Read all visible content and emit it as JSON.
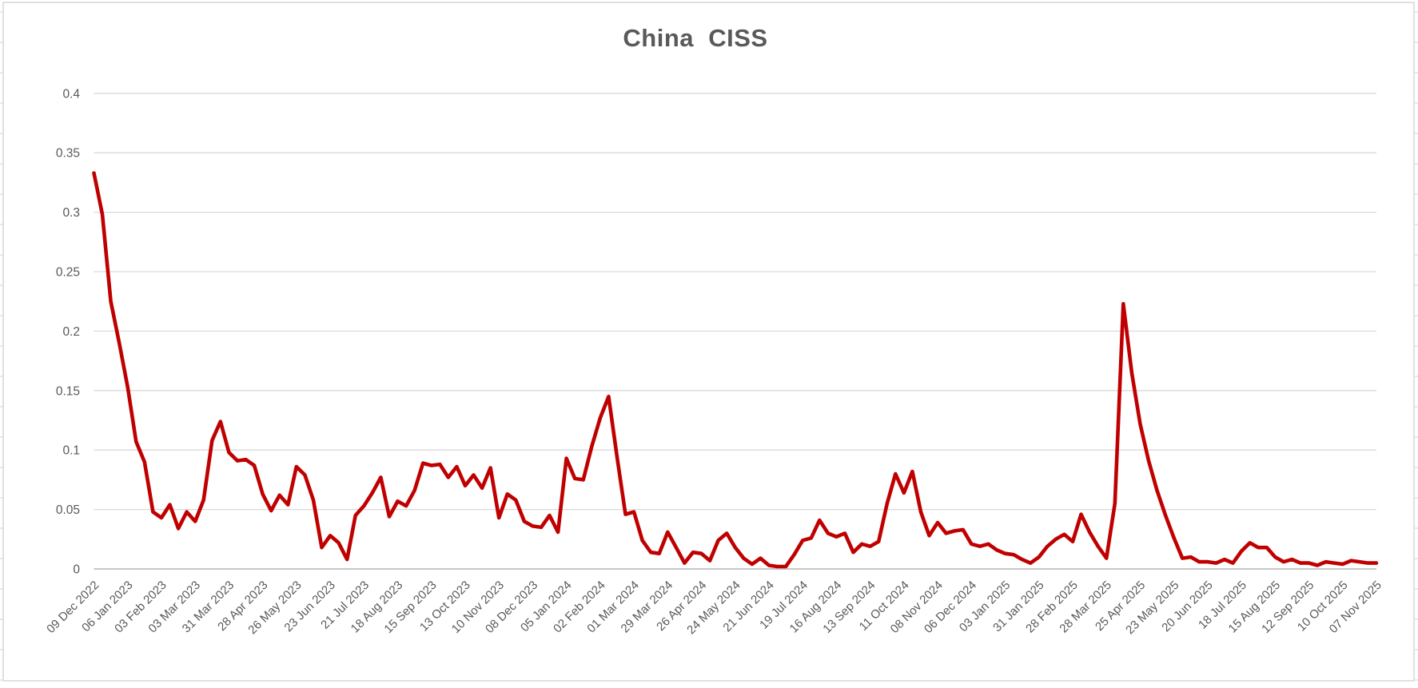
{
  "chart_data": {
    "type": "line",
    "title": "China  CISS",
    "legend": "none",
    "grid": true,
    "series_name": "China CISS",
    "series_color": "#C00000",
    "ylim": [
      0,
      0.4
    ],
    "y_ticks": [
      0,
      0.05,
      0.1,
      0.15,
      0.2,
      0.25,
      0.3,
      0.35,
      0.4
    ],
    "y_tick_labels": [
      "0",
      "0.05",
      "0.1",
      "0.15",
      "0.2",
      "0.25",
      "0.3",
      "0.35",
      "0.4"
    ],
    "x_tick_labels": [
      "09 Dec 2022",
      "06 Jan 2023",
      "03 Feb 2023",
      "03 Mar 2023",
      "31 Mar 2023",
      "28 Apr 2023",
      "26 May 2023",
      "23 Jun 2023",
      "21 Jul 2023",
      "18 Aug 2023",
      "15 Sep 2023",
      "13 Oct 2023",
      "10 Nov 2023",
      "08 Dec 2023",
      "05 Jan 2024",
      "02 Feb 2024",
      "01 Mar 2024",
      "29 Mar 2024",
      "26 Apr 2024",
      "24 May 2024",
      "21 Jun 2024",
      "19 Jul 2024",
      "16 Aug 2024",
      "13 Sep 2024",
      "11 Oct 2024",
      "08 Nov 2024",
      "06 Dec 2024",
      "03 Jan 2025",
      "31 Jan 2025",
      "28 Feb 2025",
      "28 Mar 2025",
      "25 Apr 2025",
      "23 May 2025",
      "20 Jun 2025",
      "18 Jul 2025",
      "15 Aug 2025",
      "12 Sep 2025",
      "10 Oct 2025",
      "07 Nov 2025"
    ],
    "x_ticks_every_n_points": 4,
    "x": [
      "2022-12-09",
      "2022-12-16",
      "2022-12-23",
      "2022-12-30",
      "2023-01-06",
      "2023-01-13",
      "2023-01-20",
      "2023-01-27",
      "2023-02-03",
      "2023-02-10",
      "2023-02-17",
      "2023-02-24",
      "2023-03-03",
      "2023-03-10",
      "2023-03-17",
      "2023-03-24",
      "2023-03-31",
      "2023-04-07",
      "2023-04-14",
      "2023-04-21",
      "2023-04-28",
      "2023-05-05",
      "2023-05-12",
      "2023-05-19",
      "2023-05-26",
      "2023-06-02",
      "2023-06-09",
      "2023-06-16",
      "2023-06-23",
      "2023-06-30",
      "2023-07-07",
      "2023-07-14",
      "2023-07-21",
      "2023-07-28",
      "2023-08-04",
      "2023-08-11",
      "2023-08-18",
      "2023-08-25",
      "2023-09-01",
      "2023-09-08",
      "2023-09-15",
      "2023-09-22",
      "2023-09-29",
      "2023-10-06",
      "2023-10-13",
      "2023-10-20",
      "2023-10-27",
      "2023-11-03",
      "2023-11-10",
      "2023-11-17",
      "2023-11-24",
      "2023-12-01",
      "2023-12-08",
      "2023-12-15",
      "2023-12-22",
      "2023-12-29",
      "2024-01-05",
      "2024-01-12",
      "2024-01-19",
      "2024-01-26",
      "2024-02-02",
      "2024-02-09",
      "2024-02-16",
      "2024-02-23",
      "2024-03-01",
      "2024-03-08",
      "2024-03-15",
      "2024-03-22",
      "2024-03-29",
      "2024-04-05",
      "2024-04-12",
      "2024-04-19",
      "2024-04-26",
      "2024-05-03",
      "2024-05-10",
      "2024-05-17",
      "2024-05-24",
      "2024-05-31",
      "2024-06-07",
      "2024-06-14",
      "2024-06-21",
      "2024-06-28",
      "2024-07-05",
      "2024-07-12",
      "2024-07-19",
      "2024-07-26",
      "2024-08-02",
      "2024-08-09",
      "2024-08-16",
      "2024-08-23",
      "2024-08-30",
      "2024-09-06",
      "2024-09-13",
      "2024-09-20",
      "2024-09-27",
      "2024-10-04",
      "2024-10-11",
      "2024-10-18",
      "2024-10-25",
      "2024-11-01",
      "2024-11-08",
      "2024-11-15",
      "2024-11-22",
      "2024-11-29",
      "2024-12-06",
      "2024-12-13",
      "2024-12-20",
      "2024-12-27",
      "2025-01-03",
      "2025-01-10",
      "2025-01-17",
      "2025-01-24",
      "2025-01-31",
      "2025-02-07",
      "2025-02-14",
      "2025-02-21",
      "2025-02-28",
      "2025-03-07",
      "2025-03-14",
      "2025-03-21",
      "2025-03-28",
      "2025-04-04",
      "2025-04-11",
      "2025-04-18",
      "2025-04-25",
      "2025-05-02",
      "2025-05-09",
      "2025-05-16",
      "2025-05-23",
      "2025-05-30",
      "2025-06-06",
      "2025-06-13",
      "2025-06-20",
      "2025-06-27",
      "2025-07-04",
      "2025-07-11",
      "2025-07-18",
      "2025-07-25",
      "2025-08-01",
      "2025-08-08",
      "2025-08-15",
      "2025-08-22",
      "2025-08-29",
      "2025-09-05",
      "2025-09-12",
      "2025-09-19",
      "2025-09-26",
      "2025-10-03",
      "2025-10-10",
      "2025-10-17",
      "2025-10-24",
      "2025-10-31",
      "2025-11-07"
    ],
    "values": [
      0.333,
      0.298,
      0.225,
      0.19,
      0.153,
      0.107,
      0.09,
      0.048,
      0.043,
      0.054,
      0.034,
      0.048,
      0.04,
      0.058,
      0.108,
      0.124,
      0.098,
      0.091,
      0.092,
      0.087,
      0.063,
      0.049,
      0.062,
      0.054,
      0.086,
      0.079,
      0.058,
      0.018,
      0.028,
      0.022,
      0.008,
      0.045,
      0.053,
      0.064,
      0.077,
      0.044,
      0.057,
      0.053,
      0.066,
      0.089,
      0.087,
      0.088,
      0.077,
      0.086,
      0.07,
      0.079,
      0.068,
      0.085,
      0.043,
      0.063,
      0.058,
      0.04,
      0.036,
      0.035,
      0.045,
      0.031,
      0.093,
      0.076,
      0.075,
      0.103,
      0.127,
      0.145,
      0.094,
      0.046,
      0.048,
      0.024,
      0.014,
      0.013,
      0.031,
      0.018,
      0.005,
      0.014,
      0.013,
      0.007,
      0.024,
      0.03,
      0.018,
      0.009,
      0.004,
      0.009,
      0.003,
      0.002,
      0.002,
      0.012,
      0.024,
      0.026,
      0.041,
      0.03,
      0.027,
      0.03,
      0.014,
      0.021,
      0.019,
      0.023,
      0.055,
      0.08,
      0.064,
      0.082,
      0.048,
      0.028,
      0.039,
      0.03,
      0.032,
      0.033,
      0.021,
      0.019,
      0.021,
      0.016,
      0.013,
      0.012,
      0.008,
      0.005,
      0.01,
      0.019,
      0.025,
      0.029,
      0.023,
      0.046,
      0.031,
      0.019,
      0.009,
      0.055,
      0.223,
      0.165,
      0.122,
      0.091,
      0.066,
      0.045,
      0.026,
      0.009,
      0.01,
      0.006,
      0.006,
      0.005,
      0.008,
      0.005,
      0.015,
      0.022,
      0.018,
      0.018,
      0.01,
      0.006,
      0.008,
      0.005,
      0.005,
      0.003,
      0.006,
      0.005,
      0.004,
      0.007,
      0.006,
      0.005,
      0.005
    ]
  },
  "style": {
    "accent": "#C00000",
    "grid_color": "#D9D9D9",
    "axis_color": "#BFBFBF",
    "text_color": "#595959",
    "border_color": "#D9D9D9",
    "background": "#FFFFFF"
  }
}
